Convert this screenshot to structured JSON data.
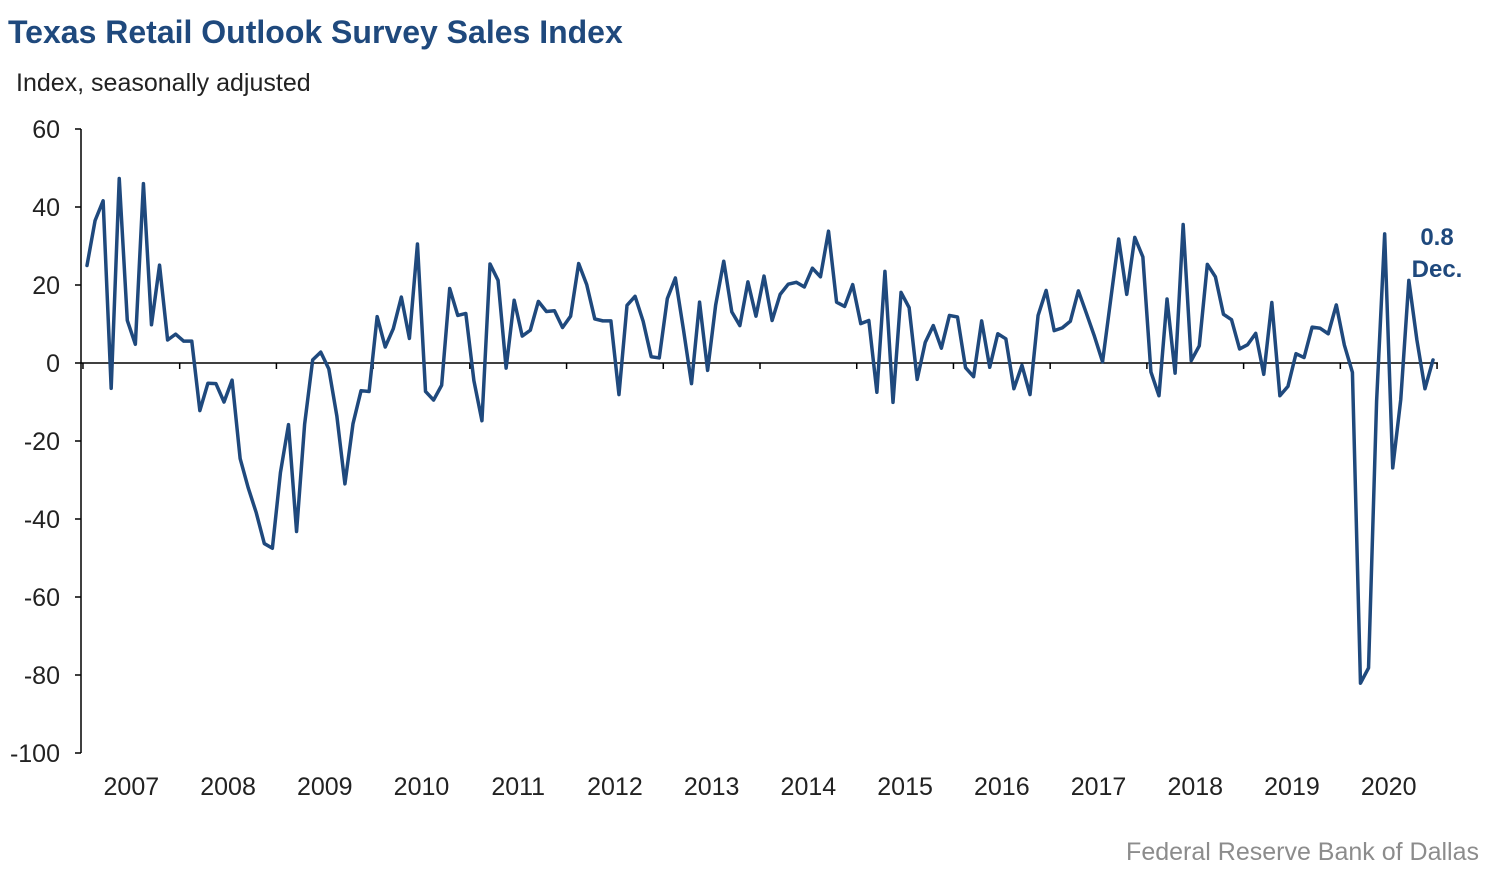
{
  "header": {
    "title": "Texas Retail Outlook Survey Sales Index",
    "subtitle": "Index, seasonally adjusted"
  },
  "footer": {
    "source": "Federal Reserve Bank of Dallas"
  },
  "colors": {
    "line": "#1f497d",
    "title": "#1f497d",
    "axis": "#000000",
    "text": "#222222",
    "source": "#8c8c8c"
  },
  "chart_data": {
    "type": "line",
    "title": "Texas Retail Outlook Survey Sales Index",
    "subtitle": "Index, seasonally adjusted",
    "xlabel": "",
    "ylabel": "",
    "ylim": [
      -100,
      60
    ],
    "yticks": [
      60,
      40,
      20,
      0,
      -20,
      -40,
      -60,
      -80,
      -100
    ],
    "x_start": "2007-01",
    "x_frequency": "monthly",
    "x_end": "2020-12",
    "xtick_labels": [
      "2007",
      "2008",
      "2009",
      "2010",
      "2011",
      "2012",
      "2013",
      "2014",
      "2015",
      "2016",
      "2017",
      "2018",
      "2019",
      "2020"
    ],
    "grid": false,
    "legend": "none",
    "series": [
      {
        "values": [
          25,
          36.5,
          41.6,
          -6.5,
          47.3,
          10.9,
          4.8,
          46,
          9.8,
          25.1,
          5.9,
          7.4,
          5.6,
          5.6,
          -12.2,
          -5.2,
          -5.3,
          -10,
          -4.4,
          -24.5,
          -32,
          -38.4,
          -46.3,
          -47.5,
          -28.1,
          -15.8,
          -43.2,
          -15.7,
          0.8,
          2.8,
          -1.5,
          -13.6,
          -31,
          -15.6,
          -7.1,
          -7.3,
          11.9,
          4.1,
          8.8,
          16.9,
          6.3,
          30.5,
          -7.3,
          -9.5,
          -5.7,
          19.1,
          12.2,
          12.7,
          -4.5,
          -14.8,
          25.4,
          21.2,
          -1.3,
          16.1,
          6.9,
          8.4,
          15.8,
          13.2,
          13.4,
          9.1,
          12,
          25.5,
          20.1,
          11.3,
          10.8,
          10.8,
          -8.1,
          14.8,
          17.1,
          10.7,
          1.6,
          1.3,
          16.5,
          21.8,
          8.6,
          -5.3,
          15.6,
          -1.9,
          14.9,
          26.1,
          13.1,
          9.6,
          20.8,
          12,
          22.3,
          10.9,
          17.6,
          20.2,
          20.7,
          19.5,
          24.3,
          22.1,
          33.8,
          15.6,
          14.5,
          20.1,
          10.1,
          10.9,
          -7.5,
          23.5,
          -10.1,
          18.1,
          14.2,
          -4.2,
          5.3,
          9.6,
          3.8,
          12.2,
          11.8,
          -1.2,
          -3.5,
          10.8,
          -1.1,
          7.5,
          6.2,
          -6.6,
          -0.6,
          -8.1,
          12.2,
          18.6,
          8.3,
          9,
          10.7,
          18.5,
          12.7,
          6.8,
          0.3,
          16.1,
          31.8,
          17.6,
          32.2,
          27.2,
          -2.3,
          -8.4,
          16.4,
          -2.6,
          35.5,
          0.6,
          4.4,
          25.3,
          22.1,
          12.5,
          11.1,
          3.6,
          4.7,
          7.6,
          -2.9,
          15.5,
          -8.4,
          -6,
          2.4,
          1.4,
          9.2,
          8.9,
          7.5,
          14.9,
          4.6,
          -2.4,
          -82.1,
          -78.2,
          -9.8,
          33.1,
          -26.9,
          -9.3,
          21.2,
          5.9,
          -6.6,
          0.8
        ]
      }
    ],
    "annotations": [
      {
        "line1": "0.8",
        "line2": "Dec."
      }
    ]
  }
}
